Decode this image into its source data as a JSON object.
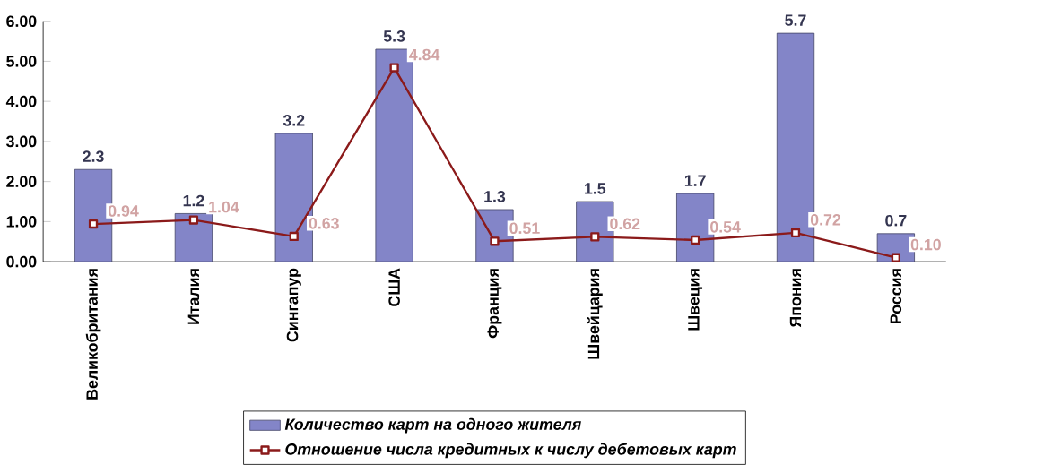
{
  "chart_data": {
    "type": "bar",
    "categories": [
      "Великобритания",
      "Италия",
      "Сингапур",
      "США",
      "Франция",
      "Швейцария",
      "Швеция",
      "Япония",
      "Россия"
    ],
    "series": [
      {
        "name": "Количество карт на одного жителя",
        "color": "#8385c8",
        "values": [
          2.3,
          1.2,
          3.2,
          5.3,
          1.3,
          1.5,
          1.7,
          5.7,
          0.7
        ],
        "value_labels": [
          "2.3",
          "1.2",
          "3.2",
          "5.3",
          "1.3",
          "1.5",
          "1.7",
          "5.7",
          "0.7"
        ]
      },
      {
        "name": "Отношение числа кредитных к числу дебетовых карт",
        "type": "line",
        "color": "#8b1a1a",
        "marker": "square",
        "values": [
          0.94,
          1.04,
          0.63,
          4.84,
          0.51,
          0.62,
          0.54,
          0.72,
          0.1
        ],
        "value_labels": [
          "0.94",
          "1.04",
          "0.63",
          "4.84",
          "0.51",
          "0.62",
          "0.54",
          "0.72",
          "0.10"
        ]
      }
    ],
    "ylim": [
      0,
      6
    ],
    "yticks": [
      {
        "value": 0,
        "label": "0.00"
      },
      {
        "value": 1,
        "label": "1.00"
      },
      {
        "value": 2,
        "label": "2.00"
      },
      {
        "value": 3,
        "label": "3.00"
      },
      {
        "value": 4,
        "label": "4.00"
      },
      {
        "value": 5,
        "label": "5.00"
      },
      {
        "value": 6,
        "label": "6.00"
      }
    ],
    "legend": "bottom",
    "grid": false
  }
}
